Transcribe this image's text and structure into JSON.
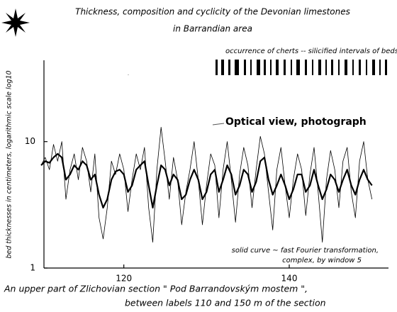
{
  "chart_data": {
    "type": "line",
    "title": [
      "Thickness, composition and cyclicity of the Devonian limestones",
      "in Barrandian area"
    ],
    "ylabel": "bed thicknesses in centimeters, logarithmic scale log10",
    "annotations": [
      "occurrence of cherts -- silicified intervals of beds",
      "Optical view, photograph",
      "solid curve ~ fast Fourier transformation,",
      "complex, by window 5"
    ],
    "caption": [
      "An upper part of Zlichovian section \" Pod Barrandovským mostem \",",
      "between labels 110 and 150 m of the section"
    ],
    "x": [
      110,
      110.5,
      111,
      111.5,
      112,
      112.5,
      113,
      113.5,
      114,
      114.5,
      115,
      115.5,
      116,
      116.5,
      117,
      117.5,
      118,
      118.5,
      119,
      119.5,
      120,
      120.5,
      121,
      121.5,
      122,
      122.5,
      123,
      123.5,
      124,
      124.5,
      125,
      125.5,
      126,
      126.5,
      127,
      127.5,
      128,
      128.5,
      129,
      129.5,
      130,
      130.5,
      131,
      131.5,
      132,
      132.5,
      133,
      133.5,
      134,
      134.5,
      135,
      135.5,
      136,
      136.5,
      137,
      137.5,
      138,
      138.5,
      139,
      139.5,
      140,
      140.5,
      141,
      141.5,
      142,
      142.5,
      143,
      143.5,
      144,
      144.5,
      145,
      145.5,
      146,
      146.5,
      147,
      147.5,
      148,
      148.5,
      149,
      149.5,
      150
    ],
    "series": [
      {
        "color": "#000000",
        "values": [
          6.5,
          7.5,
          6,
          9.5,
          7,
          10,
          3.5,
          6,
          8,
          5,
          9,
          7,
          4,
          8,
          2.5,
          1.7,
          3,
          7,
          5.5,
          8,
          6,
          2.8,
          5,
          8,
          6,
          9,
          3,
          1.6,
          6,
          13,
          7,
          3.5,
          7.5,
          5,
          2.2,
          4,
          6,
          10,
          5,
          2.2,
          4.5,
          8,
          6.5,
          2.5,
          6,
          10,
          5,
          2.3,
          5.5,
          9,
          6.5,
          3,
          6,
          11,
          8,
          4,
          2,
          6,
          9,
          4.5,
          2.5,
          5,
          8,
          6,
          2.6,
          5.5,
          9,
          4,
          1.6,
          5,
          8.5,
          6,
          3,
          7,
          9,
          4,
          2.5,
          7,
          10,
          5,
          3.5
        ]
      },
      {
        "color": "#000000",
        "values": [
          6.5,
          7,
          6.8,
          7.5,
          8,
          7.5,
          5,
          5.5,
          6.5,
          6,
          7,
          6.5,
          5,
          5.5,
          3.8,
          3,
          3.5,
          5,
          5.8,
          6,
          5.5,
          4,
          4.5,
          6,
          6.5,
          7,
          4.5,
          3,
          4.5,
          6.5,
          6,
          4.5,
          5.5,
          5,
          3.5,
          3.8,
          5,
          6,
          5,
          3.5,
          4,
          5.5,
          6,
          4,
          5,
          6.5,
          5.5,
          3.8,
          4.5,
          6,
          5.5,
          4,
          4.8,
          7,
          7.5,
          5,
          3.8,
          4.5,
          5.5,
          4.5,
          3.5,
          4.2,
          5.5,
          5.5,
          4,
          4.5,
          6,
          4.5,
          3.5,
          4.2,
          5.5,
          5,
          4,
          5,
          6,
          4.5,
          3.8,
          5,
          6,
          5,
          4.5
        ]
      }
    ],
    "xlim": [
      110,
      152
    ],
    "xticks": [
      120,
      140
    ],
    "ylim": [
      1,
      44
    ],
    "yticks": [
      1,
      10
    ],
    "yscale": "log",
    "grid": false
  }
}
